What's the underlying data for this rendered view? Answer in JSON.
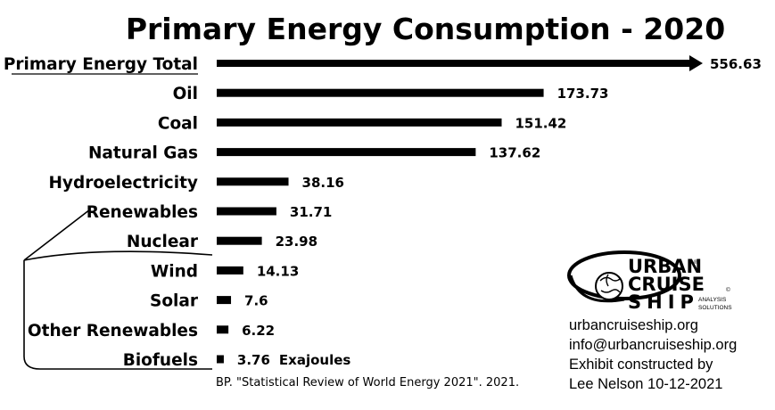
{
  "chart_data": {
    "type": "bar",
    "orientation": "horizontal",
    "title": "Primary Energy Consumption - 2020",
    "categories": [
      "Primary Energy Total",
      "Oil",
      "Coal",
      "Natural Gas",
      "Hydroelectricity",
      "Renewables",
      "Nuclear",
      "Wind",
      "Solar",
      "Other Renewables",
      "Biofuels"
    ],
    "values": [
      556.63,
      173.73,
      151.42,
      137.62,
      38.16,
      31.71,
      23.98,
      14.13,
      7.6,
      6.22,
      3.76
    ],
    "value_labels": [
      "556.63",
      "173.73",
      "151.42",
      "137.62",
      "38.16",
      "31.71",
      "23.98",
      "14.13",
      "7.6",
      "6.22",
      "3.76"
    ],
    "unit": "Exajoules",
    "total_bar_style": "arrow",
    "renewables_breakdown": [
      "Wind",
      "Solar",
      "Other Renewables",
      "Biofuels"
    ],
    "source": "BP. \"Statistical Review of World Energy 2021\". 2021."
  },
  "logo": {
    "line1": "URBAN",
    "line2": "CRUISE",
    "line3": "SHIP",
    "tagline1": "ANALYSIS",
    "tagline2": "SOLUTIONS",
    "reg_mark": "®",
    "copyright_mark": "©"
  },
  "credits": [
    "urbancruiseship.org",
    "info@urbancruiseship.org",
    "Exhibit constructed by",
    "Lee Nelson 10-12-2021"
  ]
}
